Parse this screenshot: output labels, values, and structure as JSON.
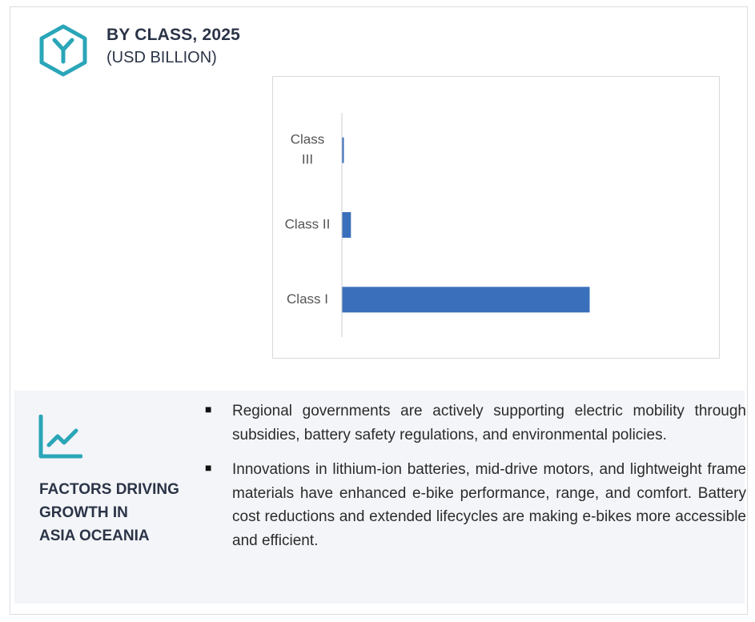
{
  "header": {
    "title": "BY CLASS, 2025",
    "subtitle": "(USD BILLION)",
    "icon": "hexagon-y-icon",
    "accent_color": "#2aa6b8"
  },
  "chart_data": {
    "type": "bar",
    "orientation": "horizontal",
    "categories": [
      "Class III",
      "Class II",
      "Class I"
    ],
    "category_lines": [
      [
        "Class",
        "III"
      ],
      [
        "Class II"
      ],
      [
        "Class I"
      ]
    ],
    "values": [
      0.3,
      3.5,
      100
    ],
    "value_note": "relative scale; no value axis shown",
    "bar_color": "#3a6fbb",
    "grid": false,
    "legend": "none"
  },
  "factors": {
    "icon": "trend-line-icon",
    "title_lines": [
      "FACTORS DRIVING",
      "GROWTH IN",
      "ASIA OCEANIA"
    ],
    "bullets": [
      "Regional governments are actively supporting electric mobility through subsidies, battery safety regulations, and environmental policies.",
      "Innovations in lithium-ion batteries, mid-drive motors, and lightweight frame materials have enhanced e-bike performance, range, and comfort. Battery cost reductions and extended lifecycles are making e-bikes more accessible and efficient."
    ]
  }
}
